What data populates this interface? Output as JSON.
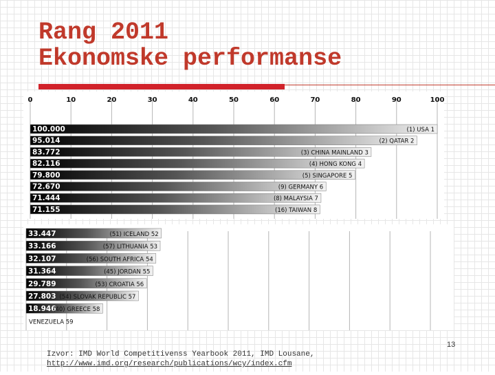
{
  "slide": {
    "title_line1": "Rang 2011",
    "title_line2": "Ekonomske performanse",
    "source_line1": "Izvor: IMD World Competitivenss Yearbook 2011, IMD Lousane,",
    "source_url": "http://www.imd.org/research/publications/wcy/index.cfm",
    "page_number": "13"
  },
  "colors": {
    "title": "#c0392b",
    "accent_bar": "#d1222a",
    "bar_dark": "#000000",
    "bar_light": "#f2f2f2"
  },
  "chart_data": [
    {
      "type": "bar",
      "orientation": "horizontal",
      "xlim": [
        0,
        100
      ],
      "x_ticks": [
        "0",
        "10",
        "20",
        "30",
        "40",
        "50",
        "60",
        "70",
        "80",
        "90",
        "100"
      ],
      "grid": true,
      "bars": [
        {
          "value": 100.0,
          "value_label": "100.000",
          "label": "(1) USA 1"
        },
        {
          "value": 95.014,
          "value_label": "95.014",
          "label": "(2) QATAR 2"
        },
        {
          "value": 83.772,
          "value_label": "83.772",
          "label": "(3) CHINA MAINLAND 3"
        },
        {
          "value": 82.116,
          "value_label": "82.116",
          "label": "(4) HONG KONG 4"
        },
        {
          "value": 79.8,
          "value_label": "79.800",
          "label": "(5) SINGAPORE 5"
        },
        {
          "value": 72.67,
          "value_label": "72.670",
          "label": "(9) GERMANY 6"
        },
        {
          "value": 71.444,
          "value_label": "71.444",
          "label": "(8) MALAYSIA 7"
        },
        {
          "value": 71.155,
          "value_label": "71.155",
          "label": "(16) TAIWAN 8"
        }
      ]
    },
    {
      "type": "bar",
      "orientation": "horizontal",
      "xlim": [
        0,
        100
      ],
      "grid": true,
      "bars": [
        {
          "value": 33.447,
          "value_label": "33.447",
          "label": "(51) ICELAND 52"
        },
        {
          "value": 33.166,
          "value_label": "33.166",
          "label": "(57) LITHUANIA 53"
        },
        {
          "value": 32.107,
          "value_label": "32.107",
          "label": "(56) SOUTH AFRICA 54"
        },
        {
          "value": 31.364,
          "value_label": "31.364",
          "label": "(45) JORDAN 55"
        },
        {
          "value": 29.789,
          "value_label": "29.789",
          "label": "(53) CROATIA 56"
        },
        {
          "value": 27.803,
          "value_label": "27.803",
          "label": "(54) SLOVAK REPUBLIC 57"
        },
        {
          "value": 18.946,
          "value_label": "18.946",
          "label": "(40) GREECE 58"
        },
        {
          "value": 0,
          "value_label": "",
          "label": "VENEZUELA 59"
        }
      ]
    }
  ]
}
